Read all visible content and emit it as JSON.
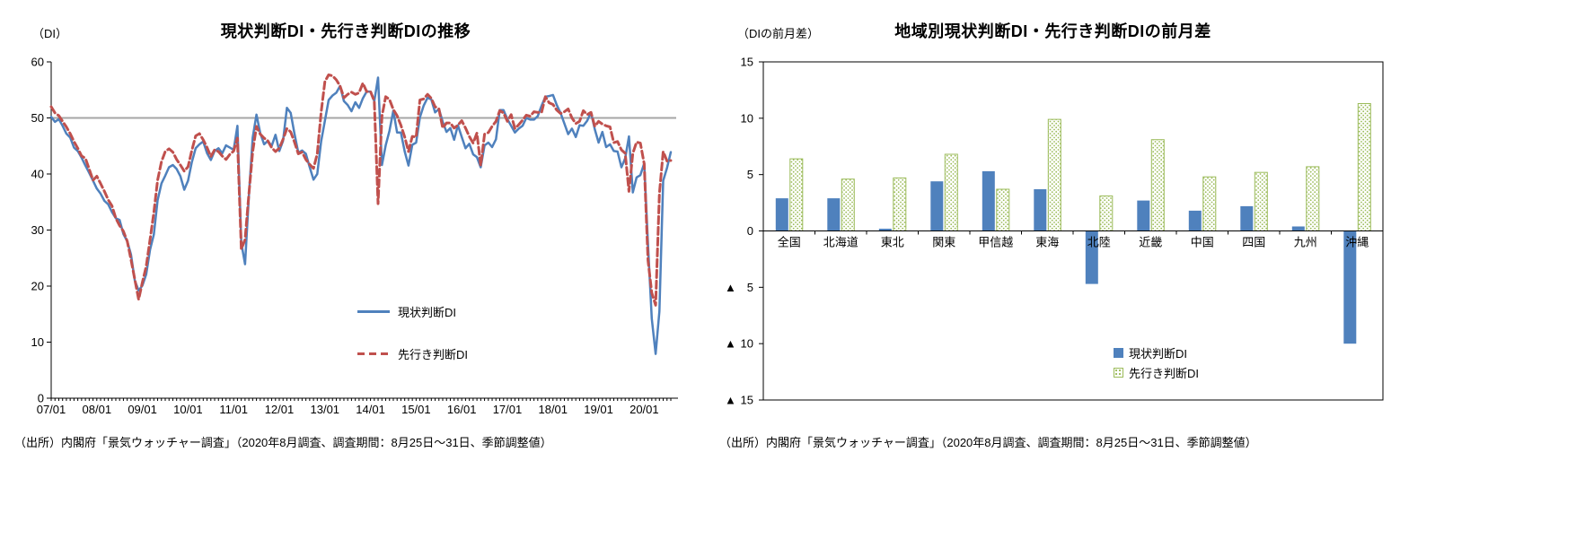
{
  "page": {
    "background": "#ffffff"
  },
  "colors": {
    "current_di": "#4F81BD",
    "outlook_di": "#9BBB59",
    "outlook_line": "#C0504D",
    "reference_line": "#A6A6A6",
    "axis": "#000000"
  },
  "negative_marker": "▲",
  "chart_data": [
    {
      "type": "line",
      "title": "現状判断DI・先行き判断DIの推移",
      "unit_label": "（DI）",
      "source": "（出所）内閣府「景気ウォッチャー調査」（2020年8月調査、調査期間：8月25日～31日、季節調整値）",
      "ylim": [
        0,
        60
      ],
      "y_ticks": [
        0,
        10,
        20,
        30,
        40,
        50,
        60
      ],
      "reference_line": 50,
      "x_tick_labels": [
        "07/01",
        "08/01",
        "09/01",
        "10/01",
        "11/01",
        "12/01",
        "13/01",
        "14/01",
        "15/01",
        "16/01",
        "17/01",
        "18/01",
        "19/01",
        "20/01"
      ],
      "months_per_tick": 12,
      "legend_position": "inside-lower-middle",
      "grid": false,
      "series": [
        {
          "name": "現状判断DI",
          "color": "#4F81BD",
          "style": "solid",
          "values": [
            50.2,
            49.3,
            49.8,
            48.6,
            47.2,
            46.5,
            44.7,
            44.1,
            42.9,
            41.5,
            40.2,
            38.8,
            37.4,
            36.5,
            35.2,
            34.6,
            33.2,
            32.1,
            31.8,
            29.3,
            28.0,
            25.6,
            21.0,
            19.2,
            20.1,
            22.1,
            26.5,
            29.2,
            35.3,
            38.3,
            39.7,
            41.2,
            41.6,
            40.9,
            39.6,
            37.2,
            38.8,
            42.1,
            44.6,
            45.3,
            45.8,
            43.7,
            42.5,
            44.1,
            44.6,
            43.7,
            45.1,
            44.7,
            44.3,
            48.6,
            27.7,
            23.9,
            36.0,
            46.5,
            50.6,
            47.3,
            45.3,
            45.9,
            45.0,
            47.0,
            44.1,
            45.9,
            51.8,
            50.9,
            47.2,
            43.8,
            44.2,
            43.6,
            41.2,
            39.0,
            40.0,
            45.8,
            49.5,
            53.2,
            54.0,
            54.5,
            55.7,
            53.0,
            52.3,
            51.2,
            52.8,
            51.8,
            53.5,
            54.7,
            54.7,
            53.0,
            57.2,
            41.6,
            45.1,
            47.7,
            51.3,
            47.4,
            47.4,
            44.0,
            41.5,
            45.2,
            45.6,
            50.1,
            52.2,
            53.6,
            53.3,
            51.0,
            51.6,
            49.3,
            47.5,
            48.2,
            46.1,
            48.7,
            46.6,
            44.6,
            45.4,
            43.5,
            43.0,
            41.2,
            45.1,
            45.6,
            44.8,
            46.2,
            51.4,
            51.4,
            49.8,
            48.6,
            47.4,
            48.1,
            48.6,
            50.0,
            49.7,
            49.7,
            50.3,
            52.2,
            53.8,
            53.9,
            54.1,
            52.3,
            50.9,
            49.0,
            47.1,
            48.1,
            46.6,
            48.7,
            48.6,
            49.5,
            51.0,
            48.0,
            45.6,
            47.5,
            44.8,
            45.3,
            44.1,
            44.0,
            41.2,
            42.8,
            46.7,
            36.7,
            39.4,
            39.8,
            41.9,
            27.4,
            14.2,
            7.9,
            15.5,
            38.8,
            41.1,
            43.9
          ]
        },
        {
          "name": "先行き判断DI",
          "color": "#C0504D",
          "style": "dashed",
          "values": [
            52.0,
            50.9,
            50.4,
            49.4,
            48.4,
            47.2,
            45.8,
            44.6,
            43.2,
            42.8,
            40.9,
            38.9,
            39.6,
            38.3,
            36.9,
            35.4,
            34.3,
            32.1,
            30.8,
            29.8,
            28.0,
            24.7,
            21.2,
            17.6,
            20.7,
            23.5,
            28.3,
            33.1,
            38.9,
            42.2,
            44.0,
            44.5,
            43.9,
            42.6,
            41.6,
            40.5,
            41.3,
            44.2,
            46.8,
            47.2,
            46.1,
            44.7,
            43.1,
            44.3,
            44.0,
            43.2,
            42.6,
            43.5,
            44.1,
            46.4,
            26.6,
            28.3,
            36.3,
            44.0,
            48.5,
            47.1,
            46.4,
            45.9,
            44.7,
            44.0,
            44.6,
            46.2,
            48.1,
            47.5,
            45.7,
            43.6,
            43.9,
            42.6,
            41.7,
            41.0,
            43.6,
            51.0,
            56.5,
            57.7,
            57.5,
            56.8,
            55.7,
            53.6,
            54.2,
            54.6,
            54.2,
            54.5,
            56.2,
            54.7,
            54.7,
            53.0,
            34.7,
            50.3,
            53.8,
            53.3,
            51.5,
            50.4,
            48.7,
            46.6,
            44.0,
            46.7,
            46.6,
            53.2,
            53.4,
            54.2,
            53.5,
            52.0,
            51.6,
            48.2,
            49.1,
            49.1,
            48.2,
            48.7,
            49.5,
            48.2,
            46.7,
            45.5,
            47.3,
            41.5,
            47.1,
            47.4,
            48.5,
            49.4,
            51.3,
            50.9,
            49.4,
            50.6,
            48.1,
            48.8,
            49.6,
            50.5,
            50.3,
            51.1,
            51.0,
            51.0,
            53.8,
            52.7,
            52.4,
            51.4,
            50.8,
            51.1,
            51.6,
            50.0,
            49.0,
            49.4,
            51.3,
            50.6,
            51.0,
            48.5,
            49.4,
            48.9,
            48.6,
            48.4,
            45.6,
            45.8,
            44.3,
            43.7,
            36.9,
            43.7,
            45.7,
            45.5,
            41.8,
            24.6,
            18.8,
            16.6,
            36.5,
            44.0,
            42.3,
            42.4
          ]
        }
      ]
    },
    {
      "type": "bar",
      "title": "地域別現状判断DI・先行き判断DIの前月差",
      "unit_label": "（DIの前月差）",
      "source": "（出所）内閣府「景気ウォッチャー調査」（2020年8月調査、調査期間：8月25日～31日、季節調整値）",
      "ylim": [
        -15,
        15
      ],
      "y_tick_values": [
        15,
        10,
        5,
        0,
        -5,
        -10,
        -15
      ],
      "categories": [
        "全国",
        "北海道",
        "東北",
        "関東",
        "甲信越",
        "東海",
        "北陸",
        "近畿",
        "中国",
        "四国",
        "九州",
        "沖縄"
      ],
      "legend_position": "inside-lower-right",
      "grid": false,
      "series": [
        {
          "name": "現状判断DI",
          "color": "#4F81BD",
          "fill": "solid",
          "values": [
            2.9,
            2.9,
            0.2,
            4.4,
            5.3,
            3.7,
            -4.7,
            2.7,
            1.8,
            2.2,
            0.4,
            -10.0
          ]
        },
        {
          "name": "先行き判断DI",
          "color": "#9BBB59",
          "fill": "dotted",
          "values": [
            6.4,
            4.6,
            4.7,
            6.8,
            3.7,
            9.9,
            3.1,
            8.1,
            4.8,
            5.2,
            5.7,
            11.3
          ]
        }
      ]
    }
  ]
}
